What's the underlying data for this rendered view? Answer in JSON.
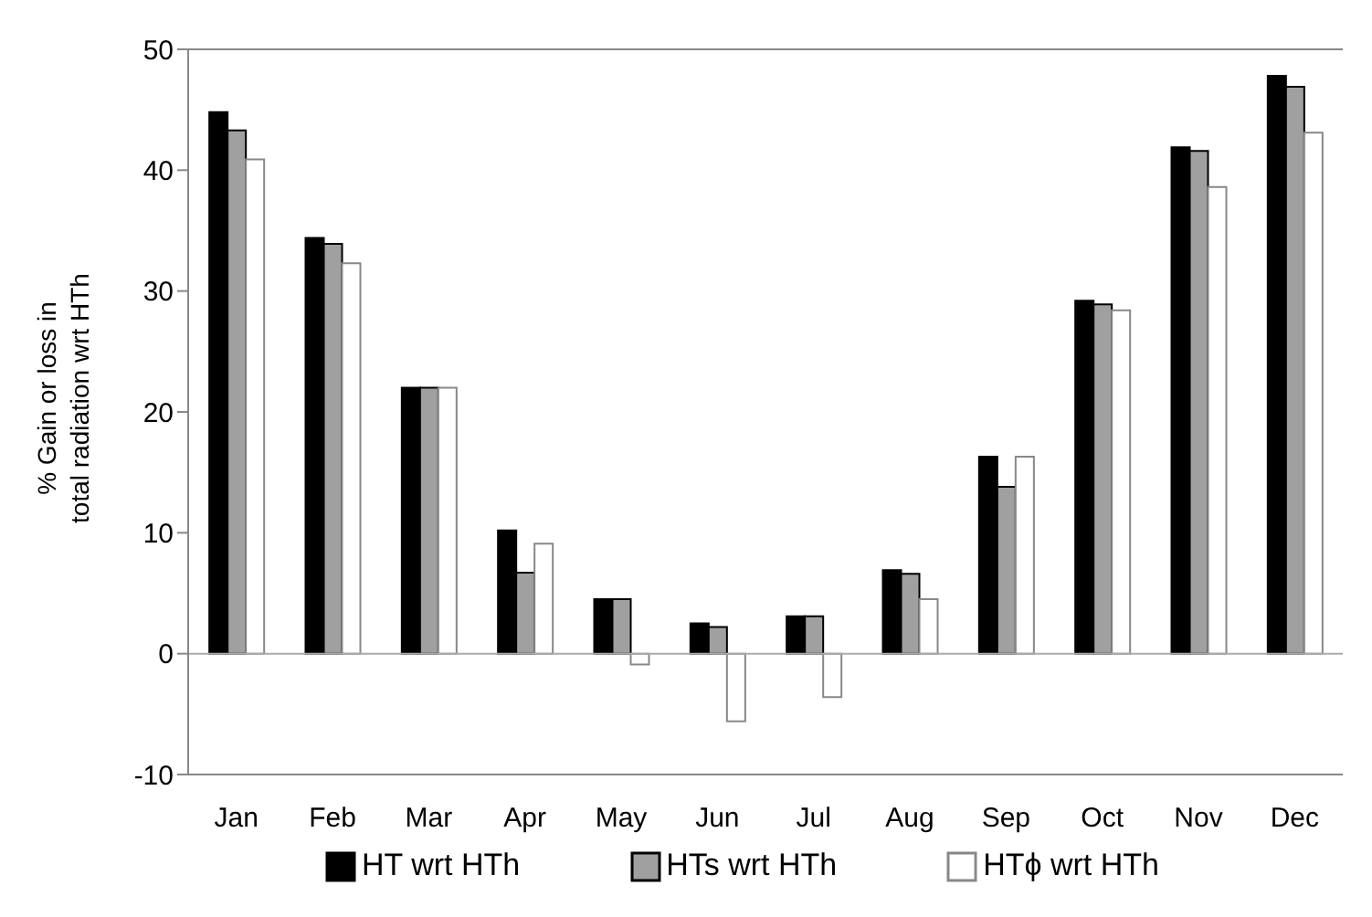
{
  "chart_data": {
    "type": "bar",
    "ylabel": "% Gain or loss in total radiation wrt HTh",
    "categories": [
      "Jan",
      "Feb",
      "Mar",
      "Apr",
      "May",
      "Jun",
      "Jul",
      "Aug",
      "Sep",
      "Oct",
      "Nov",
      "Dec"
    ],
    "series": [
      {
        "name": "HT wrt HTh",
        "color": "#000000",
        "values": [
          44.8,
          34.4,
          22.0,
          10.2,
          4.5,
          2.5,
          3.1,
          6.9,
          16.3,
          29.2,
          41.9,
          47.8
        ]
      },
      {
        "name": "HTs wrt HTh",
        "color": "#a0a0a0",
        "values": [
          43.3,
          33.9,
          22.0,
          6.7,
          4.5,
          2.2,
          3.1,
          6.6,
          13.8,
          28.9,
          41.6,
          46.9
        ]
      },
      {
        "name": "HTϕ wrt HTh",
        "color": "#ffffff",
        "values": [
          40.9,
          32.3,
          22.0,
          9.1,
          -0.9,
          -5.6,
          -3.6,
          4.5,
          16.3,
          28.4,
          38.6,
          43.1
        ]
      }
    ],
    "ylim": [
      -10,
      50
    ],
    "yticks": [
      -10,
      0,
      10,
      20,
      30,
      40,
      50
    ],
    "legend": "bottom"
  }
}
